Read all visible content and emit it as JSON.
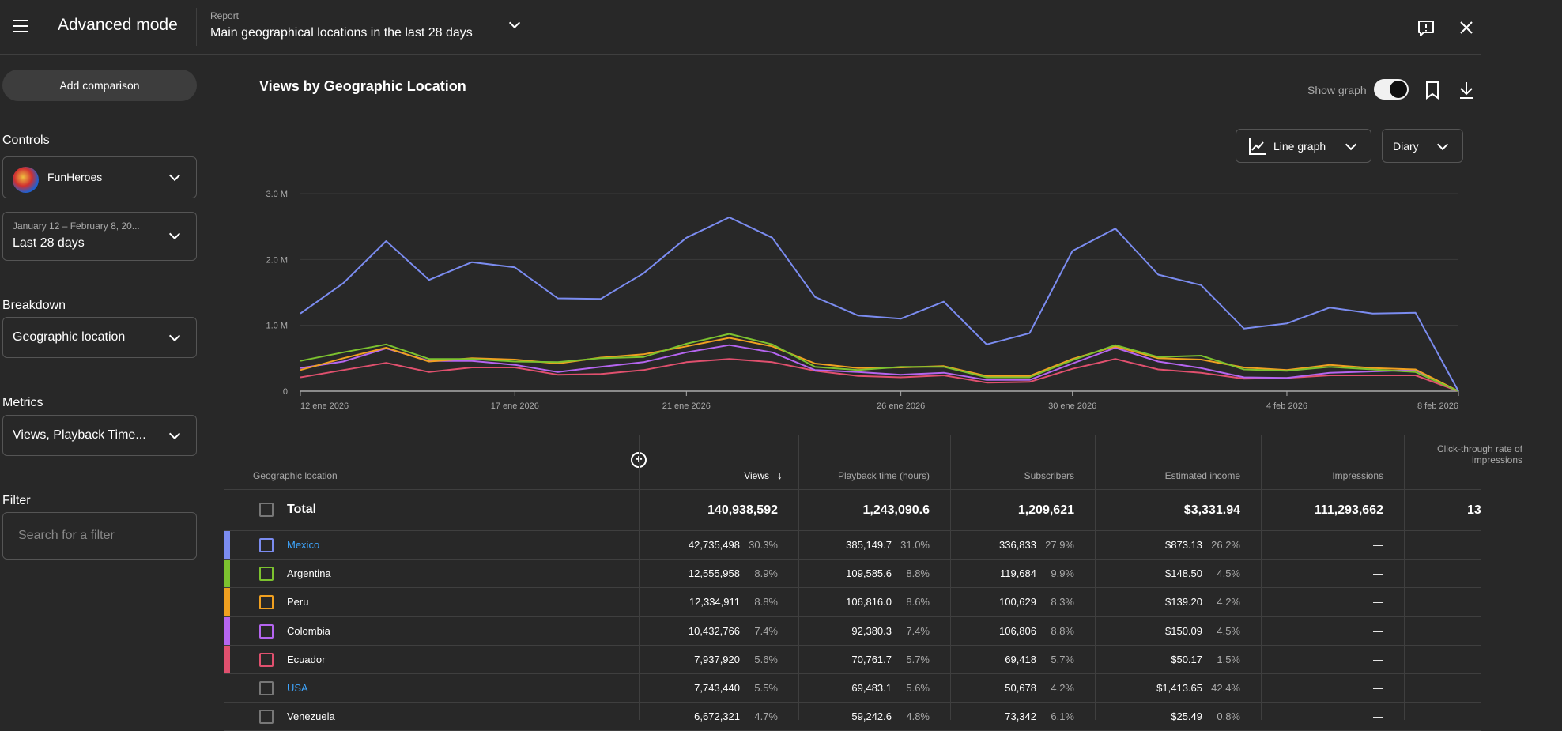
{
  "header": {
    "title": "Advanced mode",
    "report_label": "Report",
    "report_title": "Main geographical locations in the last 28 days"
  },
  "sidebar": {
    "add_comparison": "Add comparison",
    "controls_label": "Controls",
    "channel": "FunHeroes",
    "date_range": "January 12 – February 8, 20...",
    "date_preset": "Last 28 days",
    "breakdown_label": "Breakdown",
    "breakdown": "Geographic location",
    "metrics_label": "Metrics",
    "metrics": "Views, Playback Time...",
    "filter_label": "Filter",
    "filter_placeholder": "Search for a filter"
  },
  "main": {
    "title": "Views by Geographic Location",
    "show_graph_label": "Show graph",
    "show_graph": true,
    "graph_type": "Line graph",
    "granularity": "Diary"
  },
  "chart_data": {
    "type": "line",
    "ylim": [
      0,
      3000000
    ],
    "yticks": [
      "0",
      "1.0 M",
      "2.0 M",
      "3.0 M"
    ],
    "ytick_values": [
      0,
      1000000,
      2000000,
      3000000
    ],
    "x": [
      "12 ene 2026",
      "13 ene 2026",
      "14 ene 2026",
      "15 ene 2026",
      "16 ene 2026",
      "17 ene 2026",
      "18 ene 2026",
      "19 ene 2026",
      "20 ene 2026",
      "21 ene 2026",
      "22 ene 2026",
      "23 ene 2026",
      "24 ene 2026",
      "25 ene 2026",
      "26 ene 2026",
      "27 ene 2026",
      "28 ene 2026",
      "29 ene 2026",
      "30 ene 2026",
      "31 ene 2026",
      "1 feb 2026",
      "2 feb 2026",
      "3 feb 2026",
      "4 feb 2026",
      "5 feb 2026",
      "6 feb 2026",
      "7 feb 2026",
      "8 feb 2026"
    ],
    "xticks": [
      "12 ene 2026",
      "17 ene 2026",
      "21 ene 2026",
      "26 ene 2026",
      "30 ene 2026",
      "4 feb 2026",
      "8 feb 2026"
    ],
    "grid": true,
    "series": [
      {
        "name": "Mexico",
        "color": "#7b8cf0",
        "values": [
          1180000,
          1640000,
          2280000,
          1690000,
          1960000,
          1880000,
          1410000,
          1400000,
          1790000,
          2330000,
          2640000,
          2330000,
          1430000,
          1150000,
          1100000,
          1360000,
          710000,
          880000,
          2130000,
          2470000,
          1770000,
          1610000,
          950000,
          1030000,
          1270000,
          1180000,
          1190000,
          0
        ]
      },
      {
        "name": "Argentina",
        "color": "#7cc22f",
        "values": [
          460000,
          590000,
          710000,
          490000,
          490000,
          450000,
          440000,
          500000,
          520000,
          720000,
          870000,
          710000,
          370000,
          320000,
          370000,
          370000,
          210000,
          210000,
          470000,
          700000,
          520000,
          540000,
          330000,
          310000,
          370000,
          330000,
          290000,
          0
        ]
      },
      {
        "name": "Peru",
        "color": "#f0a020",
        "values": [
          320000,
          500000,
          660000,
          450000,
          500000,
          480000,
          420000,
          510000,
          560000,
          680000,
          810000,
          680000,
          420000,
          350000,
          360000,
          380000,
          230000,
          230000,
          490000,
          680000,
          500000,
          480000,
          360000,
          320000,
          400000,
          350000,
          330000,
          0
        ]
      },
      {
        "name": "Colombia",
        "color": "#b565f0",
        "values": [
          350000,
          450000,
          650000,
          460000,
          460000,
          400000,
          290000,
          370000,
          440000,
          590000,
          700000,
          590000,
          320000,
          290000,
          250000,
          280000,
          170000,
          170000,
          420000,
          660000,
          450000,
          350000,
          210000,
          200000,
          280000,
          300000,
          320000,
          0
        ]
      },
      {
        "name": "Ecuador",
        "color": "#e0506e",
        "values": [
          210000,
          320000,
          430000,
          290000,
          360000,
          360000,
          250000,
          260000,
          320000,
          440000,
          490000,
          440000,
          310000,
          230000,
          210000,
          240000,
          130000,
          140000,
          340000,
          490000,
          330000,
          280000,
          190000,
          200000,
          240000,
          240000,
          240000,
          0
        ]
      }
    ]
  },
  "table": {
    "headers": [
      "Geographic location",
      "Views",
      "Playback time (hours)",
      "Subscribers",
      "Estimated income",
      "Impressions",
      "Click-through rate of impressions"
    ],
    "total": {
      "label": "Total",
      "views": "140,938,592",
      "playback": "1,243,090.6",
      "subscribers": "1,209,621",
      "income": "$3,331.94",
      "impressions": "111,293,662",
      "ctr": "13"
    },
    "rows": [
      {
        "name": "Mexico",
        "link": true,
        "color": "#7b8cf0",
        "views": "42,735,498",
        "views_pct": "30.3%",
        "playback": "385,149.7",
        "playback_pct": "31.0%",
        "subs": "336,833",
        "subs_pct": "27.9%",
        "income": "$873.13",
        "income_pct": "26.2%",
        "impressions": "—"
      },
      {
        "name": "Argentina",
        "link": false,
        "color": "#7cc22f",
        "views": "12,555,958",
        "views_pct": "8.9%",
        "playback": "109,585.6",
        "playback_pct": "8.8%",
        "subs": "119,684",
        "subs_pct": "9.9%",
        "income": "$148.50",
        "income_pct": "4.5%",
        "impressions": "—"
      },
      {
        "name": "Peru",
        "link": false,
        "color": "#f0a020",
        "views": "12,334,911",
        "views_pct": "8.8%",
        "playback": "106,816.0",
        "playback_pct": "8.6%",
        "subs": "100,629",
        "subs_pct": "8.3%",
        "income": "$139.20",
        "income_pct": "4.2%",
        "impressions": "—"
      },
      {
        "name": "Colombia",
        "link": false,
        "color": "#b565f0",
        "views": "10,432,766",
        "views_pct": "7.4%",
        "playback": "92,380.3",
        "playback_pct": "7.4%",
        "subs": "106,806",
        "subs_pct": "8.8%",
        "income": "$150.09",
        "income_pct": "4.5%",
        "impressions": "—"
      },
      {
        "name": "Ecuador",
        "link": false,
        "color": "#e0506e",
        "views": "7,937,920",
        "views_pct": "5.6%",
        "playback": "70,761.7",
        "playback_pct": "5.7%",
        "subs": "69,418",
        "subs_pct": "5.7%",
        "income": "$50.17",
        "income_pct": "1.5%",
        "impressions": "—"
      },
      {
        "name": "USA",
        "link": true,
        "color": "",
        "views": "7,743,440",
        "views_pct": "5.5%",
        "playback": "69,483.1",
        "playback_pct": "5.6%",
        "subs": "50,678",
        "subs_pct": "4.2%",
        "income": "$1,413.65",
        "income_pct": "42.4%",
        "impressions": "—"
      },
      {
        "name": "Venezuela",
        "link": false,
        "color": "",
        "views": "6,672,321",
        "views_pct": "4.7%",
        "playback": "59,242.6",
        "playback_pct": "4.8%",
        "subs": "73,342",
        "subs_pct": "6.1%",
        "income": "$25.49",
        "income_pct": "0.8%",
        "impressions": "—"
      }
    ]
  }
}
